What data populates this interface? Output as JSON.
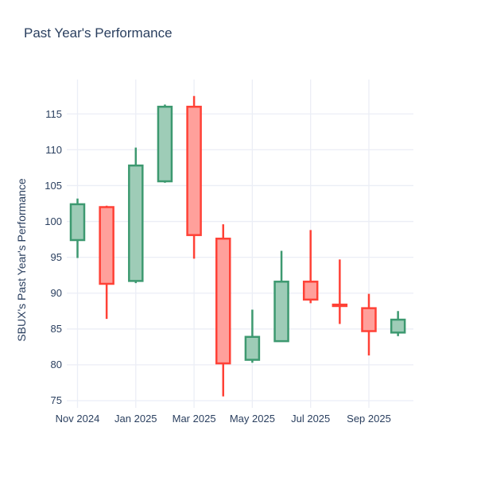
{
  "chart_data": {
    "type": "candlestick",
    "title": "Past Year's Performance",
    "xlabel": "",
    "ylabel": "SBUX's Past Year's Performance",
    "legend": false,
    "grid": true,
    "ylim": [
      74.0,
      119.8
    ],
    "y_ticks": [
      75,
      80,
      85,
      90,
      95,
      100,
      105,
      110,
      115
    ],
    "x_tick_labels": [
      "Nov 2024",
      "Jan 2025",
      "Mar 2025",
      "May 2025",
      "Jul 2025",
      "Sep 2025"
    ],
    "categories": [
      "Nov 2024",
      "Dec 2024",
      "Jan 2025",
      "Feb 2025",
      "Mar 2025",
      "Apr 2025",
      "May 2025",
      "Jun 2025",
      "Jul 2025",
      "Aug 2025",
      "Sep 2025",
      "Oct 2025"
    ],
    "ohlc": [
      {
        "open": 97.4,
        "high": 103.2,
        "low": 94.9,
        "close": 102.4
      },
      {
        "open": 102.0,
        "high": 102.2,
        "low": 86.4,
        "close": 91.3
      },
      {
        "open": 91.7,
        "high": 110.3,
        "low": 91.4,
        "close": 107.8
      },
      {
        "open": 105.6,
        "high": 116.3,
        "low": 105.4,
        "close": 116.0
      },
      {
        "open": 116.0,
        "high": 117.5,
        "low": 94.8,
        "close": 98.1
      },
      {
        "open": 97.6,
        "high": 99.6,
        "low": 75.6,
        "close": 80.2
      },
      {
        "open": 80.7,
        "high": 87.7,
        "low": 80.3,
        "close": 83.9
      },
      {
        "open": 83.3,
        "high": 95.9,
        "low": 83.2,
        "close": 91.6
      },
      {
        "open": 91.6,
        "high": 98.8,
        "low": 88.6,
        "close": 89.1
      },
      {
        "open": 88.4,
        "high": 94.7,
        "low": 85.7,
        "close": 88.2
      },
      {
        "open": 87.9,
        "high": 89.9,
        "low": 81.3,
        "close": 84.7
      },
      {
        "open": 84.5,
        "high": 87.5,
        "low": 84.0,
        "close": 86.3
      }
    ],
    "colors": {
      "increasing_line": "#3D9970",
      "increasing_fill": "#9ECCB7",
      "decreasing_line": "#FF4136",
      "decreasing_fill": "#FFA09B",
      "grid": "#EBEEF6",
      "text": "#2A3F5F",
      "background": "#FFFFFF"
    }
  }
}
